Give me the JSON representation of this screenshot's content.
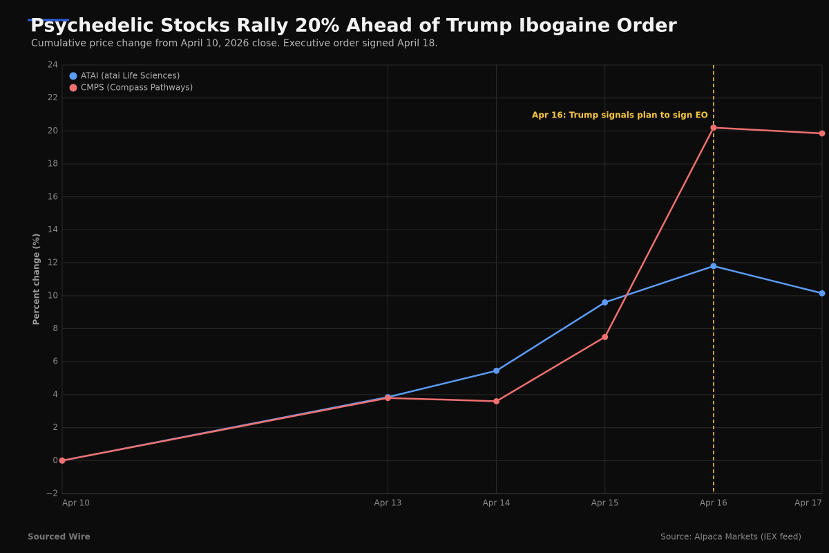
{
  "chart_data": {
    "type": "line",
    "title": "Psychedelic Stocks Rally 20% Ahead of Trump Ibogaine Order",
    "subtitle": "Cumulative price change from April 10, 2026 close. Executive order signed April 18.",
    "ylabel": "Percent change (%)",
    "x": [
      "Apr 10",
      "Apr 13",
      "Apr 14",
      "Apr 15",
      "Apr 16",
      "Apr 17"
    ],
    "series": [
      {
        "name": "ATAI (atai Life Sciences)",
        "color": "#5b9cf5",
        "values": [
          0,
          3.85,
          5.45,
          9.6,
          11.8,
          10.15
        ]
      },
      {
        "name": "CMPS (Compass Pathways)",
        "color": "#f07070",
        "values": [
          0,
          3.8,
          3.6,
          7.5,
          20.2,
          19.85
        ]
      }
    ],
    "ylim": [
      -2,
      24
    ],
    "yticks": [
      {
        "value": -2,
        "label": "−2"
      },
      0,
      2,
      4,
      6,
      8,
      10,
      12,
      14,
      16,
      18,
      20,
      22,
      24
    ],
    "grid": true,
    "legend": "upper left",
    "annotation": {
      "x": "Apr 16",
      "text": "Apr 16: Trump signals plan to sign EO",
      "color": "#f5c542"
    },
    "footer": "Sourced Wire",
    "source": "Source: Alpaca Markets (IEX feed)"
  }
}
